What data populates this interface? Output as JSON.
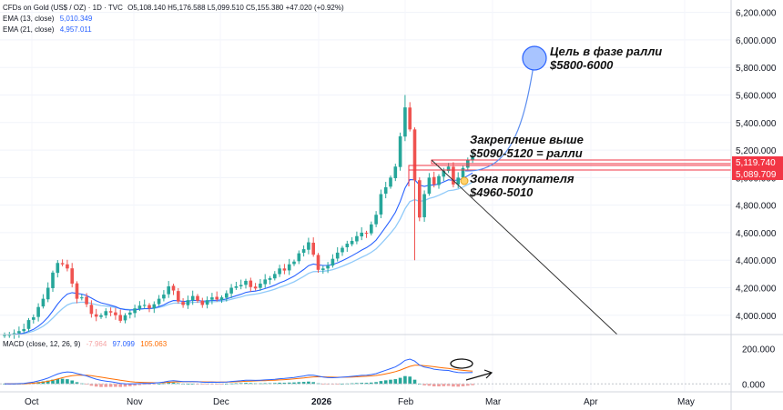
{
  "header": {
    "symbol": "CFDs on Gold (US$ / OZ) · 1D · TVC",
    "ohlc": "O5,108.140  H5,176.588  L5,099.510  C5,155.380  +47.020 (+0.92%)",
    "ema13_label": "EMA (13, close)",
    "ema13_value": "5,010.349",
    "ema21_label": "EMA (21, close)",
    "ema21_value": "4,957.011"
  },
  "macd_header": {
    "label": "MACD (close, 12, 26, 9)",
    "hist": "-7.964",
    "macd": "97.099",
    "signal": "105.063"
  },
  "annotations": {
    "target_line1": "Цель в фазе ралли",
    "target_line2": "$5800-6000",
    "hold_line1": "Закрепление выше",
    "hold_line2": "$5090-5120 = ралли",
    "buyer_line1": "Зона покупателя",
    "buyer_line2": "$4960-5010"
  },
  "price_tags": {
    "upper": "5,119.740",
    "lower": "5,089.709"
  },
  "colors": {
    "up": "#26a69a",
    "down": "#ef5350",
    "ema13": "#2962ff",
    "ema21": "#90caf9",
    "macd_line": "#2962ff",
    "signal_line": "#ff6d00",
    "zone": "#f23645"
  },
  "chart_data": [
    {
      "type": "candlestick",
      "title": "CFDs on Gold (US$ / OZ) · 1D · TVC",
      "x_ticks": [
        "Oct",
        "Nov",
        "Dec",
        "2026",
        "Feb",
        "Mar",
        "Apr",
        "May"
      ],
      "y_ticks": [
        "4,000.000",
        "4,200.000",
        "4,400.000",
        "4,600.000",
        "4,800.000",
        "5,000.000",
        "5,200.000",
        "5,400.000",
        "5,600.000",
        "5,800.000",
        "6,000.000",
        "6,200.000"
      ],
      "ylim": [
        3860,
        6290
      ],
      "closes": [
        3860,
        3858,
        3870,
        3885,
        3900,
        3965,
        3985,
        4060,
        4120,
        4200,
        4310,
        4380,
        4370,
        4340,
        4230,
        4120,
        4130,
        4080,
        4010,
        3990,
        4000,
        4030,
        4020,
        4000,
        3960,
        4000,
        4020,
        4050,
        4070,
        4075,
        4050,
        4080,
        4120,
        4150,
        4210,
        4180,
        4100,
        4075,
        4110,
        4140,
        4105,
        4075,
        4110,
        4130,
        4115,
        4130,
        4160,
        4200,
        4210,
        4220,
        4250,
        4205,
        4195,
        4230,
        4260,
        4270,
        4300,
        4340,
        4325,
        4370,
        4390,
        4450,
        4480,
        4530,
        4440,
        4330,
        4340,
        4360,
        4410,
        4455,
        4490,
        4520,
        4540,
        4575,
        4600,
        4595,
        4660,
        4730,
        4880,
        4930,
        5000,
        5080,
        5300,
        5510,
        5350,
        4980,
        4710,
        4880,
        5000,
        4950,
        5010,
        5050,
        5080,
        4950,
        5000,
        5070,
        5125,
        5155
      ],
      "ohlc_last": {
        "open": 5108.14,
        "high": 5176.588,
        "low": 5099.51,
        "close": 5155.38
      },
      "ema13_last": 5010.349,
      "ema21_last": 4957.011,
      "zones": [
        {
          "label": "5,089.709 – 5,119.740"
        }
      ]
    },
    {
      "type": "macd",
      "title": "MACD (close, 12, 26, 9)",
      "y_ticks": [
        "0.000",
        "200.000"
      ],
      "ylim": [
        -40,
        260
      ],
      "last": {
        "histogram": -7.964,
        "macd": 97.099,
        "signal": 105.063
      }
    }
  ]
}
